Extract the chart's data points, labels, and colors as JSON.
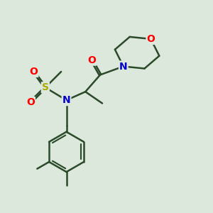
{
  "background_color": "#e0e8e0",
  "bond_color": "#2a4a2a",
  "bond_width": 1.8,
  "atom_colors": {
    "O": "#ff0000",
    "N": "#0000cc",
    "S": "#aaaa00",
    "C": "#2a4a2a"
  },
  "font_size_heteroatom": 11,
  "bg": "#dde8dd"
}
